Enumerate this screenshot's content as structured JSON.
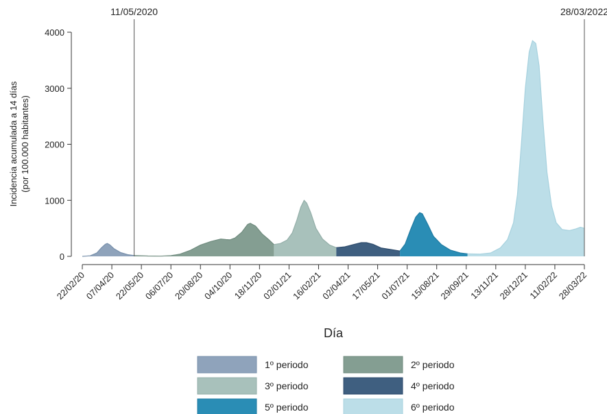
{
  "chart_data": {
    "type": "area",
    "title": "",
    "xlabel": "Día",
    "ylabel_lines": [
      "Incidencia acumulada a 14 días",
      "(por 100.000 habitantes)"
    ],
    "ylim": [
      0,
      4200
    ],
    "yticks": [
      0,
      1000,
      2000,
      3000,
      4000
    ],
    "xlim": [
      "2020-02-22",
      "2022-03-28"
    ],
    "xtick_labels": [
      "22/02/20",
      "07/04/20",
      "22/05/20",
      "06/07/20",
      "20/08/20",
      "04/10/20",
      "18/11/20",
      "02/01/21",
      "16/02/21",
      "02/04/21",
      "17/05/21",
      "01/07/21",
      "15/08/21",
      "29/09/21",
      "13/11/21",
      "28/12/21",
      "11/02/22",
      "28/03/22"
    ],
    "xtick_dates": [
      "2020-02-22",
      "2020-04-07",
      "2020-05-22",
      "2020-07-06",
      "2020-08-20",
      "2020-10-04",
      "2020-11-18",
      "2021-01-02",
      "2021-02-16",
      "2021-04-02",
      "2021-05-17",
      "2021-07-01",
      "2021-08-15",
      "2021-09-29",
      "2021-11-13",
      "2021-12-28",
      "2022-02-11",
      "2022-03-28"
    ],
    "grid": false,
    "legend_position": "bottom",
    "annotations": [
      {
        "date": "2020-05-11",
        "label": "11/05/2020"
      },
      {
        "date": "2022-03-28",
        "label": "28/03/2022"
      }
    ],
    "series": [
      {
        "name": "1º periodo",
        "color": "#8fa3bb",
        "stroke": "#7890ab",
        "points": [
          [
            "2020-02-22",
            0
          ],
          [
            "2020-03-05",
            10
          ],
          [
            "2020-03-15",
            60
          ],
          [
            "2020-03-22",
            150
          ],
          [
            "2020-03-28",
            215
          ],
          [
            "2020-03-31",
            230
          ],
          [
            "2020-04-04",
            205
          ],
          [
            "2020-04-10",
            140
          ],
          [
            "2020-04-20",
            70
          ],
          [
            "2020-05-01",
            30
          ],
          [
            "2020-05-11",
            15
          ]
        ]
      },
      {
        "name": "2º periodo",
        "color": "#849e92",
        "stroke": "#6f8b7e",
        "points": [
          [
            "2020-05-11",
            15
          ],
          [
            "2020-06-01",
            6
          ],
          [
            "2020-06-20",
            4
          ],
          [
            "2020-07-06",
            12
          ],
          [
            "2020-07-20",
            40
          ],
          [
            "2020-08-05",
            110
          ],
          [
            "2020-08-20",
            200
          ],
          [
            "2020-09-05",
            265
          ],
          [
            "2020-09-20",
            310
          ],
          [
            "2020-09-28",
            300
          ],
          [
            "2020-10-04",
            295
          ],
          [
            "2020-10-12",
            330
          ],
          [
            "2020-10-22",
            430
          ],
          [
            "2020-10-31",
            570
          ],
          [
            "2020-11-04",
            590
          ],
          [
            "2020-11-12",
            540
          ],
          [
            "2020-11-22",
            400
          ],
          [
            "2020-12-02",
            300
          ],
          [
            "2020-12-10",
            210
          ]
        ]
      },
      {
        "name": "3º periodo",
        "color": "#a8c1bb",
        "stroke": "#93aea8",
        "points": [
          [
            "2020-12-10",
            210
          ],
          [
            "2020-12-20",
            230
          ],
          [
            "2020-12-30",
            290
          ],
          [
            "2021-01-07",
            420
          ],
          [
            "2021-01-14",
            650
          ],
          [
            "2021-01-20",
            880
          ],
          [
            "2021-01-25",
            1000
          ],
          [
            "2021-01-29",
            950
          ],
          [
            "2021-02-04",
            780
          ],
          [
            "2021-02-12",
            500
          ],
          [
            "2021-02-22",
            310
          ],
          [
            "2021-03-05",
            200
          ],
          [
            "2021-03-15",
            155
          ]
        ]
      },
      {
        "name": "4º periodo",
        "color": "#3f5f80",
        "stroke": "#2c4a6b",
        "points": [
          [
            "2021-03-15",
            155
          ],
          [
            "2021-03-28",
            170
          ],
          [
            "2021-04-10",
            210
          ],
          [
            "2021-04-22",
            245
          ],
          [
            "2021-04-30",
            245
          ],
          [
            "2021-05-10",
            215
          ],
          [
            "2021-05-22",
            150
          ],
          [
            "2021-06-05",
            125
          ],
          [
            "2021-06-20",
            95
          ]
        ]
      },
      {
        "name": "5º periodo",
        "color": "#2a8db5",
        "stroke": "#1f7aa1",
        "points": [
          [
            "2021-06-20",
            95
          ],
          [
            "2021-06-28",
            220
          ],
          [
            "2021-07-06",
            470
          ],
          [
            "2021-07-14",
            700
          ],
          [
            "2021-07-20",
            780
          ],
          [
            "2021-07-24",
            760
          ],
          [
            "2021-08-01",
            580
          ],
          [
            "2021-08-10",
            360
          ],
          [
            "2021-08-22",
            210
          ],
          [
            "2021-09-05",
            110
          ],
          [
            "2021-09-20",
            60
          ],
          [
            "2021-10-01",
            45
          ]
        ]
      },
      {
        "name": "6º periodo",
        "color": "#bcdee8",
        "stroke": "#a6d1de",
        "points": [
          [
            "2021-10-01",
            45
          ],
          [
            "2021-10-20",
            40
          ],
          [
            "2021-11-05",
            60
          ],
          [
            "2021-11-20",
            150
          ],
          [
            "2021-12-01",
            300
          ],
          [
            "2021-12-10",
            600
          ],
          [
            "2021-12-16",
            1100
          ],
          [
            "2021-12-22",
            2000
          ],
          [
            "2021-12-28",
            3000
          ],
          [
            "2022-01-03",
            3650
          ],
          [
            "2022-01-08",
            3850
          ],
          [
            "2022-01-13",
            3800
          ],
          [
            "2022-01-18",
            3400
          ],
          [
            "2022-01-24",
            2400
          ],
          [
            "2022-01-30",
            1500
          ],
          [
            "2022-02-06",
            900
          ],
          [
            "2022-02-13",
            600
          ],
          [
            "2022-02-22",
            480
          ],
          [
            "2022-03-05",
            460
          ],
          [
            "2022-03-15",
            490
          ],
          [
            "2022-03-22",
            520
          ],
          [
            "2022-03-28",
            500
          ]
        ]
      }
    ]
  }
}
